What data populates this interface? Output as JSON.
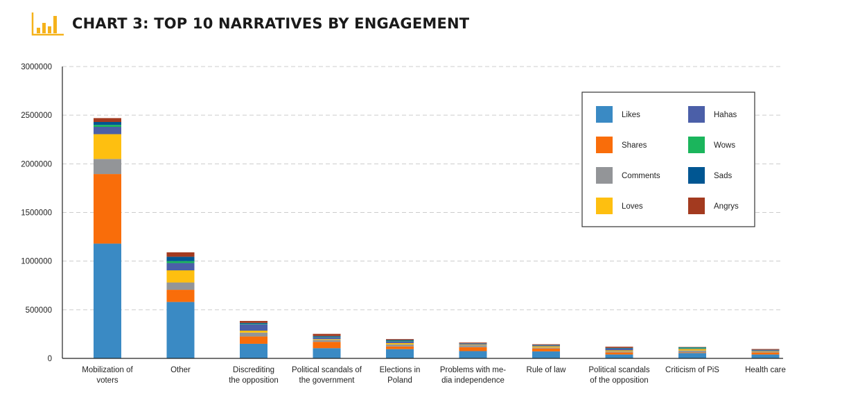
{
  "header": {
    "title": "CHART 3: TOP 10 NARRATIVES BY ENGAGEMENT",
    "icon": "bar-chart-icon",
    "accent_color": "#F5B21B"
  },
  "chart_data": {
    "type": "bar",
    "stacked": true,
    "title": "CHART 3: TOP 10 NARRATIVES BY ENGAGEMENT",
    "xlabel": "",
    "ylabel": "",
    "ylim": [
      0,
      3000000
    ],
    "yticks": [
      0,
      500000,
      1000000,
      1500000,
      2000000,
      2500000,
      3000000
    ],
    "ytick_labels": [
      "0",
      "500000",
      "1000000",
      "1500000",
      "2000000",
      "2500000",
      "3000000"
    ],
    "grid": true,
    "legend_position": "top-right",
    "categories": [
      [
        "Mobilization of",
        "voters"
      ],
      [
        "Other"
      ],
      [
        "Discrediting",
        "the opposition"
      ],
      [
        "Political scandals of",
        "the government"
      ],
      [
        "Elections in",
        "Poland"
      ],
      [
        "Problems with me-",
        "dia independence"
      ],
      [
        "Rule of law"
      ],
      [
        "Political scandals",
        "of the opposition"
      ],
      [
        "Criticism of PiS"
      ],
      [
        "Health care"
      ]
    ],
    "series": [
      {
        "name": "Likes",
        "color": "#3A8AC4",
        "values": [
          1180000,
          580000,
          150000,
          105000,
          95000,
          75000,
          72000,
          40000,
          55000,
          40000
        ]
      },
      {
        "name": "Shares",
        "color": "#F96D0A",
        "values": [
          715000,
          125000,
          75000,
          65000,
          28000,
          40000,
          30000,
          22000,
          6000,
          20000
        ]
      },
      {
        "name": "Comments",
        "color": "#939598",
        "values": [
          155000,
          75000,
          40000,
          20000,
          20000,
          20000,
          10000,
          10000,
          20000,
          8000
        ]
      },
      {
        "name": "Loves",
        "color": "#FEBF10",
        "values": [
          255000,
          125000,
          20000,
          8000,
          14000,
          6000,
          12000,
          10000,
          15000,
          6000
        ]
      },
      {
        "name": "Hahas",
        "color": "#4B5FA8",
        "values": [
          75000,
          75000,
          65000,
          20000,
          18000,
          8000,
          8000,
          18000,
          6000,
          8000
        ]
      },
      {
        "name": "Wows",
        "color": "#1BB55C",
        "values": [
          20000,
          20000,
          5000,
          4000,
          6000,
          2000,
          2000,
          2000,
          8000,
          2000
        ]
      },
      {
        "name": "Sads",
        "color": "#005692",
        "values": [
          30000,
          45000,
          10000,
          8000,
          8000,
          4000,
          4000,
          6000,
          4000,
          4000
        ]
      },
      {
        "name": "Angrys",
        "color": "#A33A1F",
        "values": [
          40000,
          45000,
          20000,
          22000,
          9000,
          8000,
          7000,
          12000,
          3000,
          8000
        ]
      }
    ]
  }
}
